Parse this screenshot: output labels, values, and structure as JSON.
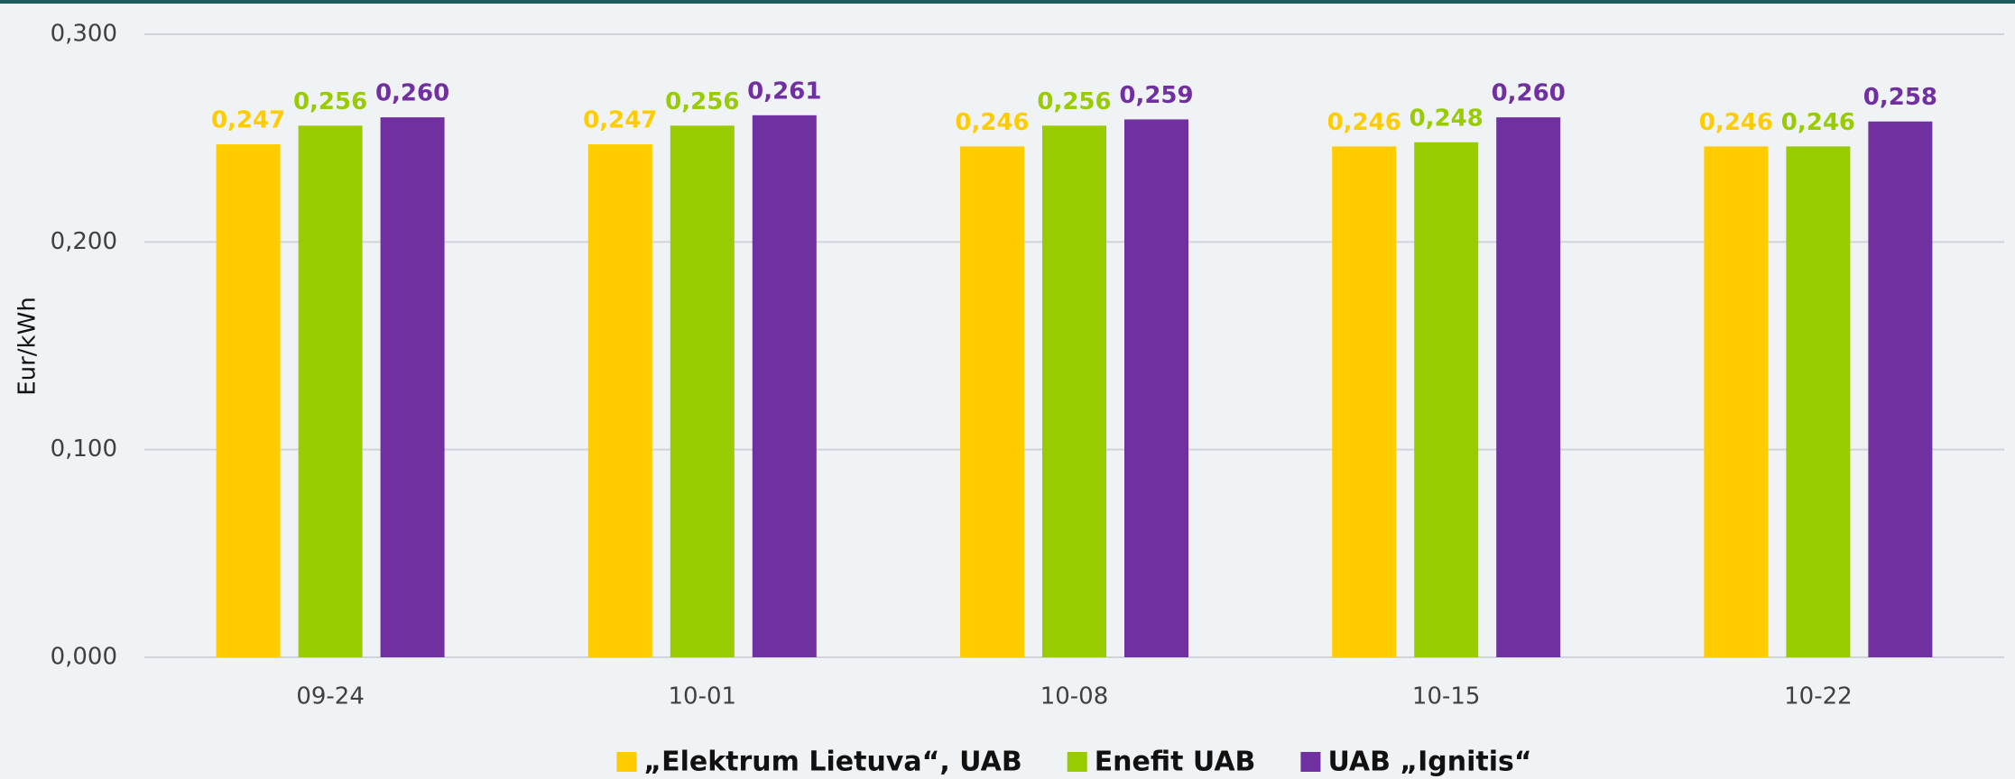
{
  "chart_data": {
    "type": "bar",
    "y_label": "Eur/kWh",
    "categories": [
      "09-24",
      "10-01",
      "10-08",
      "10-15",
      "10-22"
    ],
    "series": [
      {
        "name": "„Elektrum Lietuva“, UAB",
        "color": "#ffcc00",
        "values": [
          0.247,
          0.247,
          0.246,
          0.246,
          0.246
        ],
        "value_labels": [
          "0,247",
          "0,247",
          "0,246",
          "0,246",
          "0,246"
        ]
      },
      {
        "name": "Enefit UAB",
        "color": "#99cc00",
        "values": [
          0.256,
          0.256,
          0.256,
          0.248,
          0.246
        ],
        "value_labels": [
          "0,256",
          "0,256",
          "0,256",
          "0,248",
          "0,246"
        ]
      },
      {
        "name": "UAB „Ignitis“",
        "color": "#7030a0",
        "values": [
          0.26,
          0.261,
          0.259,
          0.26,
          0.258
        ],
        "value_labels": [
          "0,260",
          "0,261",
          "0,259",
          "0,260",
          "0,258"
        ]
      }
    ],
    "ylim": [
      0,
      0.3
    ],
    "yticks": [
      {
        "value": 0,
        "label": "0,000"
      },
      {
        "value": 0.1,
        "label": "0,100"
      },
      {
        "value": 0.2,
        "label": "0,200"
      },
      {
        "value": 0.3,
        "label": "0,300"
      }
    ],
    "grid": true,
    "legend": "bottom"
  }
}
